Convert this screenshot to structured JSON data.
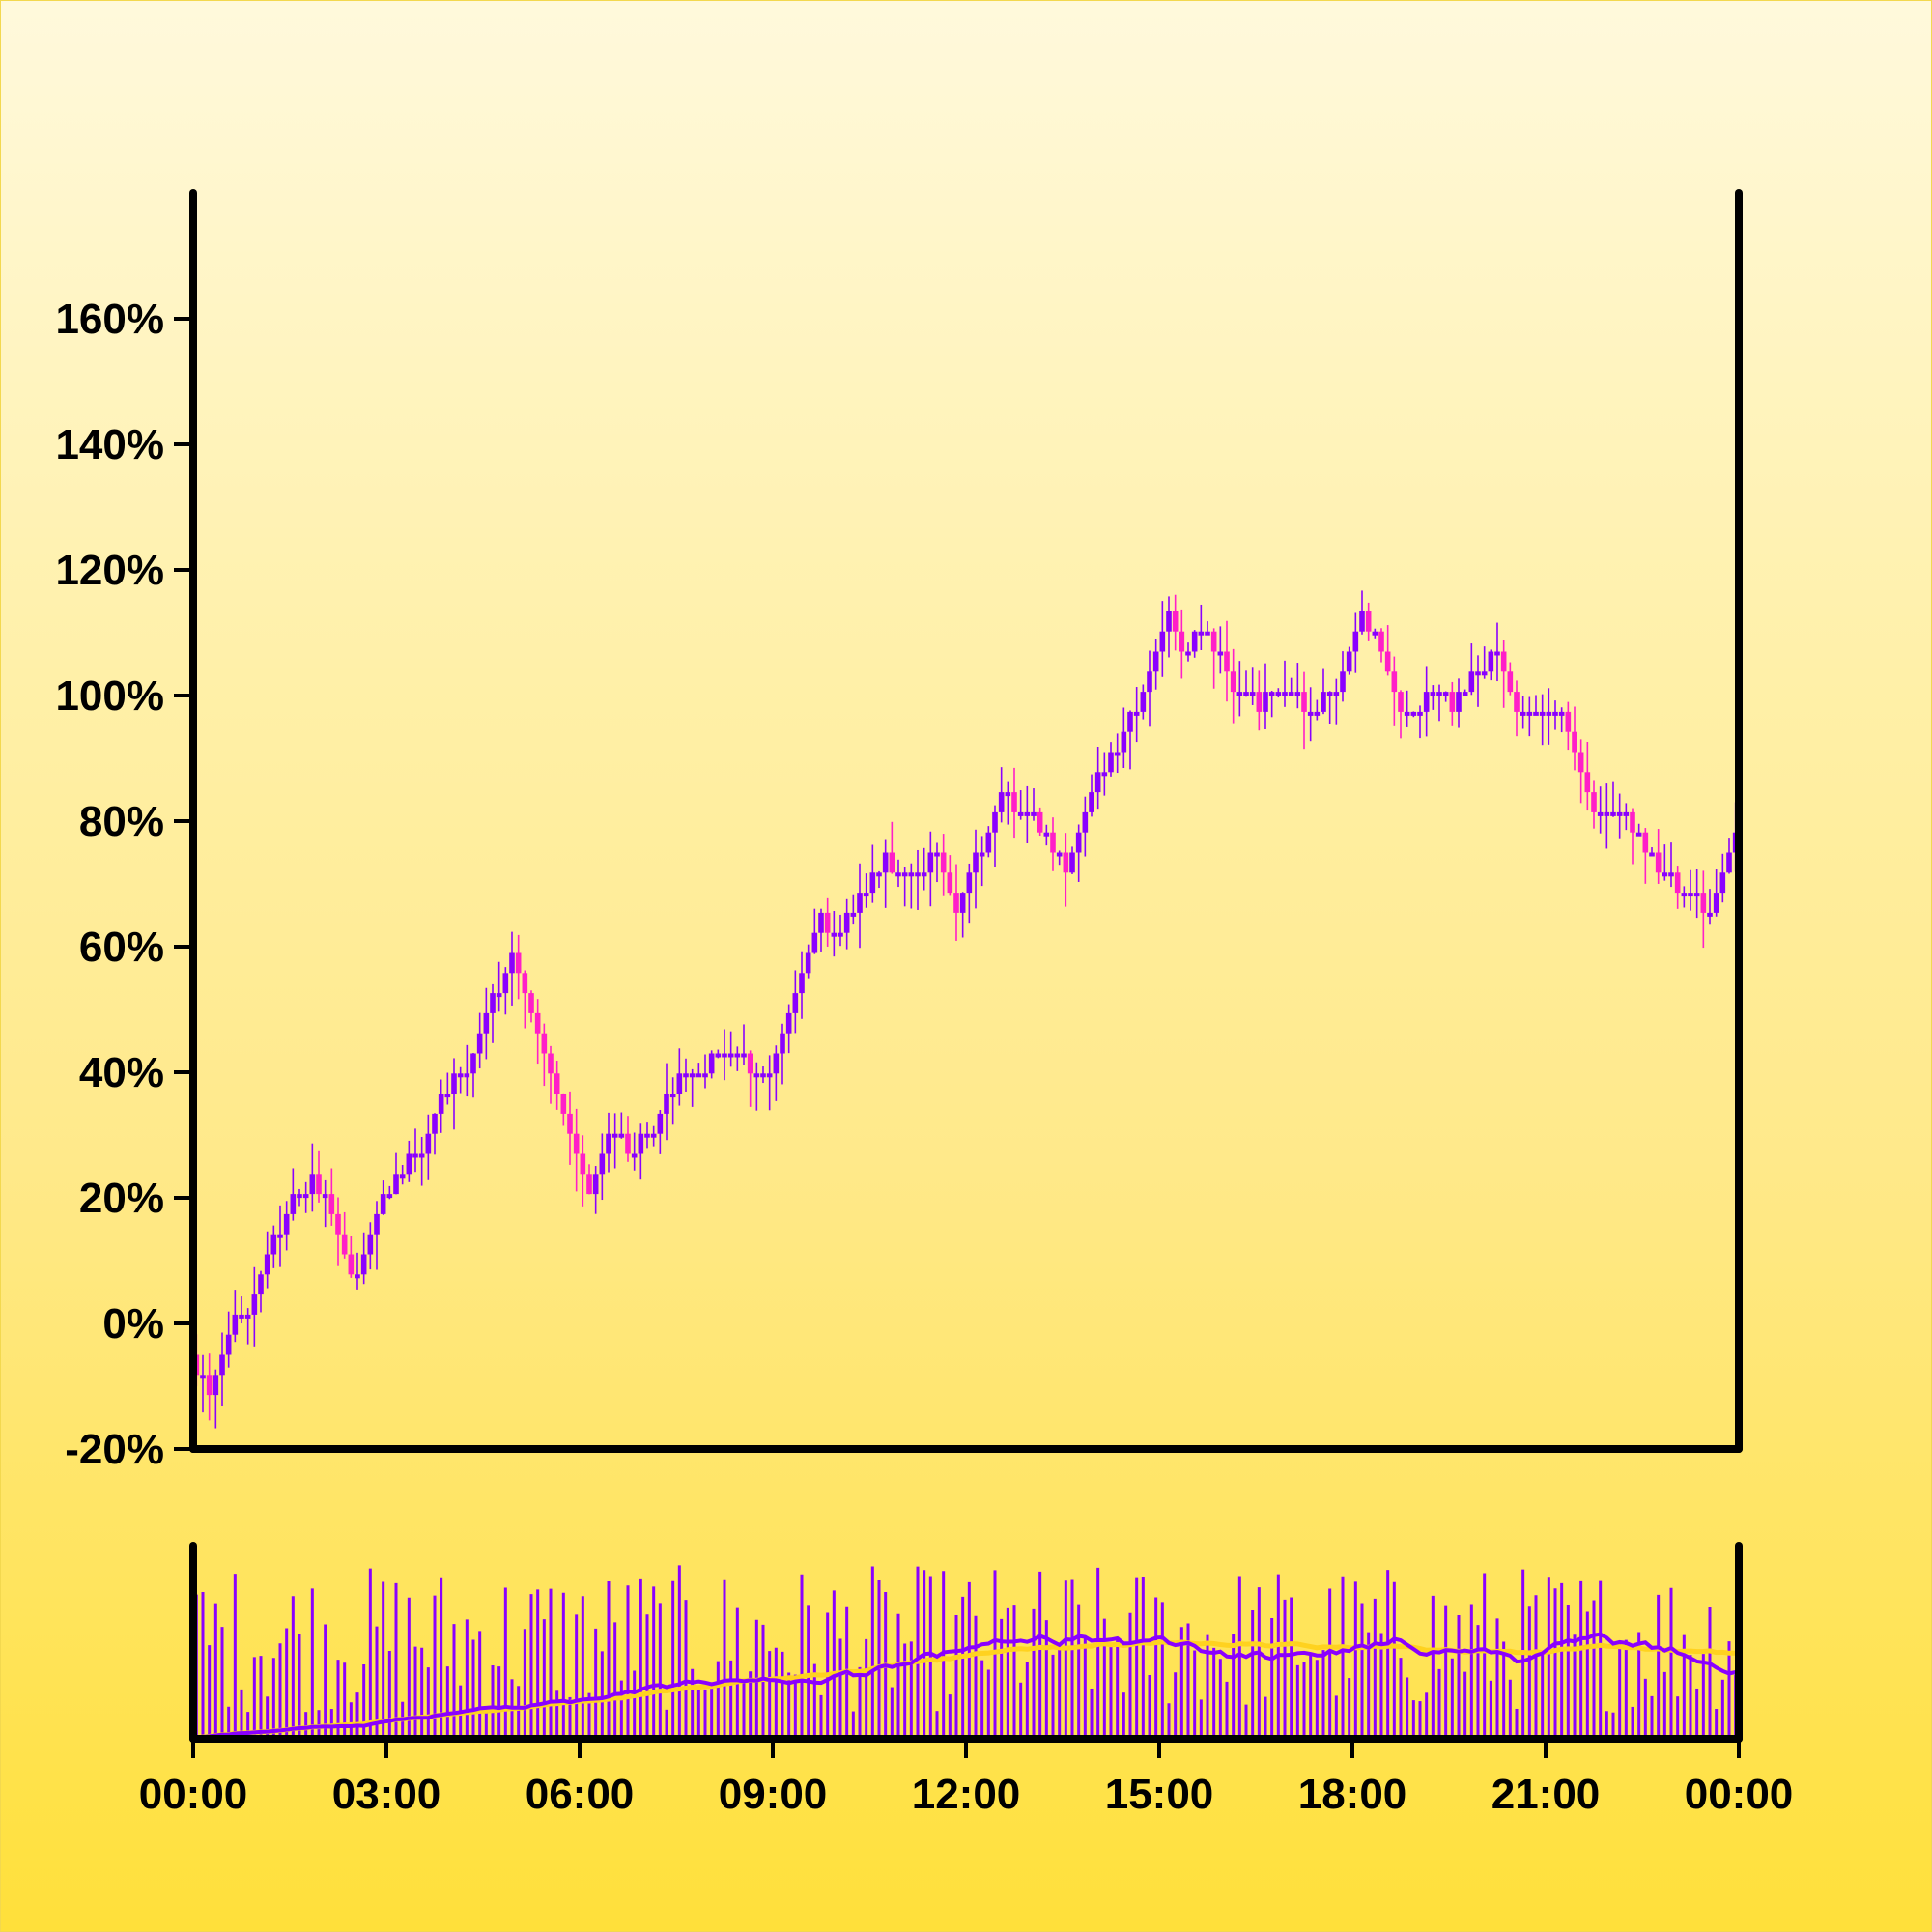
{
  "chart_data": {
    "type": "candlestick",
    "title": "",
    "xlabel": "",
    "ylabel": "",
    "ylim": [
      -20,
      180
    ],
    "y_ticks": [
      "-20%",
      "0%",
      "20%",
      "40%",
      "60%",
      "80%",
      "100%",
      "120%",
      "140%",
      "160%"
    ],
    "y_tick_values": [
      -20,
      0,
      20,
      40,
      60,
      80,
      100,
      120,
      140,
      160
    ],
    "x_ticks": [
      "00:00",
      "03:00",
      "06:00",
      "09:00",
      "12:00",
      "15:00",
      "18:00",
      "21:00",
      "00:00"
    ],
    "x_tick_hours": [
      0,
      3,
      6,
      9,
      12,
      15,
      18,
      21,
      24
    ],
    "xlim_hours": [
      0,
      24
    ],
    "grid": false,
    "legend": "none",
    "candle_interval_minutes": 6,
    "close_path_anchors": [
      [
        0.0,
        -5
      ],
      [
        0.3,
        -10
      ],
      [
        0.5,
        -3
      ],
      [
        0.9,
        3
      ],
      [
        1.3,
        13
      ],
      [
        1.6,
        20
      ],
      [
        1.9,
        23
      ],
      [
        2.2,
        19
      ],
      [
        2.5,
        7
      ],
      [
        2.8,
        14
      ],
      [
        3.2,
        24
      ],
      [
        3.6,
        28
      ],
      [
        4.0,
        38
      ],
      [
        4.3,
        40
      ],
      [
        4.6,
        50
      ],
      [
        4.9,
        55
      ],
      [
        5.0,
        58
      ],
      [
        5.3,
        46
      ],
      [
        5.6,
        37
      ],
      [
        5.9,
        27
      ],
      [
        6.2,
        22
      ],
      [
        6.5,
        32
      ],
      [
        6.8,
        28
      ],
      [
        7.2,
        30
      ],
      [
        7.6,
        40
      ],
      [
        8.0,
        41
      ],
      [
        8.4,
        44
      ],
      [
        8.7,
        41
      ],
      [
        9.0,
        40
      ],
      [
        9.3,
        50
      ],
      [
        9.7,
        67
      ],
      [
        10.0,
        62
      ],
      [
        10.4,
        68
      ],
      [
        10.8,
        74
      ],
      [
        11.2,
        71
      ],
      [
        11.6,
        75
      ],
      [
        11.9,
        66
      ],
      [
        12.3,
        76
      ],
      [
        12.6,
        85
      ],
      [
        12.9,
        82
      ],
      [
        13.3,
        78
      ],
      [
        13.6,
        72
      ],
      [
        13.9,
        85
      ],
      [
        14.3,
        90
      ],
      [
        14.8,
        100
      ],
      [
        15.1,
        115
      ],
      [
        15.4,
        108
      ],
      [
        15.8,
        110
      ],
      [
        16.2,
        102
      ],
      [
        16.6,
        99
      ],
      [
        17.0,
        102
      ],
      [
        17.4,
        97
      ],
      [
        17.8,
        102
      ],
      [
        18.2,
        113
      ],
      [
        18.5,
        108
      ],
      [
        18.9,
        96
      ],
      [
        19.3,
        102
      ],
      [
        19.6,
        98
      ],
      [
        20.0,
        104
      ],
      [
        20.3,
        107
      ],
      [
        20.6,
        97
      ],
      [
        20.9,
        96
      ],
      [
        21.2,
        99
      ],
      [
        21.5,
        90
      ],
      [
        21.8,
        82
      ],
      [
        22.1,
        83
      ],
      [
        22.5,
        77
      ],
      [
        22.9,
        71
      ],
      [
        23.3,
        68
      ],
      [
        23.6,
        66
      ],
      [
        23.9,
        76
      ],
      [
        24.0,
        78
      ]
    ],
    "volume_panel": {
      "bar_color": "#8a00ff",
      "fast_ma_color": "#8a00ff",
      "slow_ma_color": "#ffd21f"
    },
    "colors": {
      "up": "#8a00ff",
      "down": "#ff1fc8",
      "axis": "#000000"
    }
  }
}
